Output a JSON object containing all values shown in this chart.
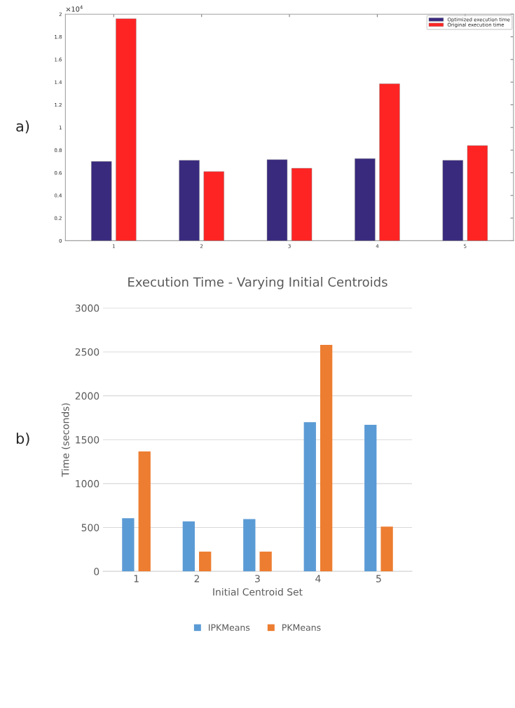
{
  "chart_data": [
    {
      "type": "bar",
      "categories": [
        "1",
        "2",
        "3",
        "4",
        "5"
      ],
      "series": [
        {
          "name": "Optimized execution time",
          "color": "#392a7e",
          "values": [
            0.7,
            0.71,
            0.715,
            0.725,
            0.71
          ]
        },
        {
          "name": "Original execution time",
          "color": "#fe2424",
          "values": [
            1.96,
            0.61,
            0.64,
            1.385,
            0.84
          ]
        }
      ],
      "ylim": [
        0,
        2
      ],
      "yticks": [
        0,
        0.2,
        0.4,
        0.6,
        0.8,
        1,
        1.2,
        1.4,
        1.6,
        1.8,
        2
      ],
      "grid": false,
      "legend": "top right",
      "annotations": [
        "a)",
        "×10$^{4}$"
      ]
    },
    {
      "type": "bar",
      "title": "Execution Time - Varying Initial Centroids",
      "xlabel": "Initial Centroid Set",
      "ylabel": "Time (seconds)",
      "categories": [
        "1",
        "2",
        "3",
        "4",
        "5"
      ],
      "series": [
        {
          "name": "IPKMeans",
          "color": "#5b9bd5",
          "values": [
            605,
            570,
            595,
            1700,
            1670
          ]
        },
        {
          "name": "PKMeans",
          "color": "#ed7d31",
          "values": [
            1365,
            225,
            225,
            2580,
            510
          ]
        }
      ],
      "ylim": [
        0,
        3000
      ],
      "yticks": [
        0,
        500,
        1000,
        1500,
        2000,
        2500,
        3000
      ],
      "grid": "y",
      "legend": "bottom",
      "annotations": [
        "b)"
      ]
    }
  ]
}
